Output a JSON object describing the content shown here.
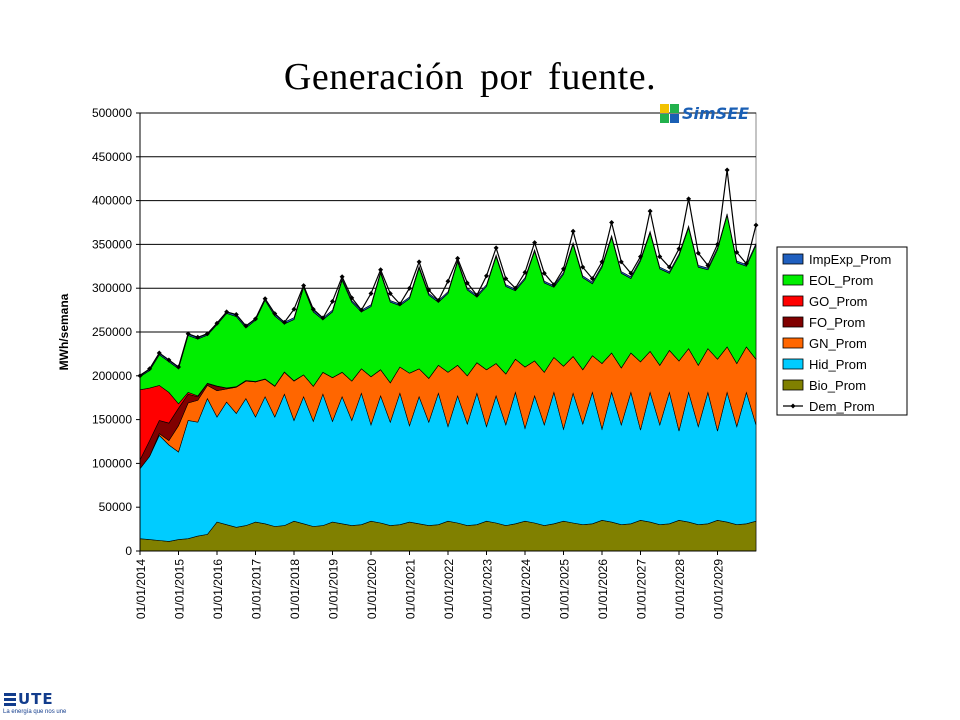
{
  "slide": {
    "title": "Generación por fuente."
  },
  "brand": {
    "name": "SimSEE"
  },
  "company": {
    "name": "UTE",
    "tagline": "La energía que nos une"
  },
  "chart_data": {
    "type": "area",
    "ylabel": "MWh/semana",
    "ylim": [
      0,
      500000
    ],
    "yticks": [
      0,
      50000,
      100000,
      150000,
      200000,
      250000,
      300000,
      350000,
      400000,
      450000,
      500000
    ],
    "ytick_labels": [
      "0",
      "50000",
      "100000",
      "150000",
      "200000",
      "250000",
      "300000",
      "350000",
      "400000",
      "450000",
      "500000"
    ],
    "xlim": [
      2014.0,
      2030.0
    ],
    "xticks": [
      2014,
      2015,
      2016,
      2017,
      2018,
      2019,
      2020,
      2021,
      2022,
      2023,
      2024,
      2025,
      2026,
      2027,
      2028,
      2029
    ],
    "xtick_labels": [
      "01/01/2014",
      "01/01/2015",
      "01/01/2016",
      "01/01/2017",
      "01/01/2018",
      "01/01/2019",
      "01/01/2020",
      "01/01/2021",
      "01/01/2022",
      "01/01/2023",
      "01/01/2024",
      "01/01/2025",
      "01/01/2026",
      "01/01/2027",
      "01/01/2028",
      "01/01/2029"
    ],
    "grid": "horizontal",
    "legend_position": "right",
    "colors": {
      "ImpExp_Prom": "#1f5fbf",
      "EOL_Prom": "#00ee00",
      "GO_Prom": "#ff0000",
      "FO_Prom": "#800000",
      "GN_Prom": "#ff6600",
      "Hid_Prom": "#00ccff",
      "Bio_Prom": "#808000",
      "Dem_Prom": "#000000"
    },
    "legend": [
      "ImpExp_Prom",
      "EOL_Prom",
      "GO_Prom",
      "FO_Prom",
      "GN_Prom",
      "Hid_Prom",
      "Bio_Prom",
      "Dem_Prom"
    ],
    "stack_order": [
      "Bio_Prom",
      "Hid_Prom",
      "GN_Prom",
      "FO_Prom",
      "GO_Prom",
      "EOL_Prom",
      "ImpExp_Prom"
    ],
    "x": [
      2014.0,
      2014.25,
      2014.5,
      2014.75,
      2015.0,
      2015.25,
      2015.5,
      2015.75,
      2016.0,
      2016.25,
      2016.5,
      2016.75,
      2017.0,
      2017.25,
      2017.5,
      2017.75,
      2018.0,
      2018.25,
      2018.5,
      2018.75,
      2019.0,
      2019.25,
      2019.5,
      2019.75,
      2020.0,
      2020.25,
      2020.5,
      2020.75,
      2021.0,
      2021.25,
      2021.5,
      2021.75,
      2022.0,
      2022.25,
      2022.5,
      2022.75,
      2023.0,
      2023.25,
      2023.5,
      2023.75,
      2024.0,
      2024.25,
      2024.5,
      2024.75,
      2025.0,
      2025.25,
      2025.5,
      2025.75,
      2026.0,
      2026.25,
      2026.5,
      2026.75,
      2027.0,
      2027.25,
      2027.5,
      2027.75,
      2028.0,
      2028.25,
      2028.5,
      2028.75,
      2029.0,
      2029.25,
      2029.5,
      2029.75,
      2030.0
    ],
    "series": [
      {
        "name": "Bio_Prom",
        "values": [
          14000,
          13000,
          12000,
          11000,
          13000,
          14000,
          17000,
          19000,
          33000,
          30000,
          27000,
          29000,
          33000,
          31000,
          28000,
          29000,
          34000,
          31000,
          28000,
          29000,
          33000,
          31000,
          29000,
          30000,
          34000,
          32000,
          29000,
          30000,
          33000,
          31000,
          29000,
          30000,
          34000,
          32000,
          29000,
          30000,
          34000,
          32000,
          29000,
          31000,
          34000,
          32000,
          29000,
          31000,
          34000,
          32000,
          30000,
          31000,
          35000,
          33000,
          30000,
          31000,
          35000,
          33000,
          30000,
          31000,
          35000,
          33000,
          30000,
          31000,
          35000,
          33000,
          30000,
          31000,
          34000
        ]
      },
      {
        "name": "Hid_Prom",
        "values": [
          80000,
          95000,
          120000,
          110000,
          100000,
          135000,
          130000,
          155000,
          120000,
          140000,
          130000,
          145000,
          120000,
          145000,
          125000,
          150000,
          115000,
          145000,
          120000,
          150000,
          115000,
          145000,
          120000,
          150000,
          110000,
          145000,
          118000,
          150000,
          110000,
          145000,
          118000,
          150000,
          108000,
          145000,
          116000,
          150000,
          108000,
          145000,
          115000,
          150000,
          106000,
          145000,
          115000,
          150000,
          105000,
          148000,
          115000,
          150000,
          104000,
          148000,
          114000,
          150000,
          103000,
          148000,
          114000,
          150000,
          102000,
          148000,
          112000,
          150000,
          102000,
          148000,
          112000,
          150000,
          110000
        ]
      },
      {
        "name": "GN_Prom",
        "values": [
          0,
          0,
          2000,
          5000,
          30000,
          20000,
          25000,
          15000,
          30000,
          15000,
          30000,
          20000,
          40000,
          20000,
          35000,
          25000,
          45000,
          25000,
          40000,
          25000,
          50000,
          28000,
          45000,
          28000,
          55000,
          30000,
          45000,
          30000,
          60000,
          32000,
          50000,
          32000,
          62000,
          35000,
          55000,
          35000,
          65000,
          37000,
          58000,
          38000,
          70000,
          40000,
          60000,
          40000,
          72000,
          42000,
          62000,
          42000,
          75000,
          45000,
          65000,
          45000,
          78000,
          47000,
          68000,
          48000,
          80000,
          50000,
          70000,
          50000,
          82000,
          52000,
          72000,
          52000,
          75000
        ]
      },
      {
        "name": "FO_Prom",
        "values": [
          10000,
          18000,
          15000,
          20000,
          20000,
          10000,
          4000,
          2000,
          5000,
          1000,
          500,
          500,
          500,
          300,
          300,
          300,
          300,
          0,
          0,
          0,
          0,
          0,
          0,
          0,
          0,
          0,
          0,
          0,
          0,
          0,
          0,
          0,
          0,
          0,
          0,
          0,
          0,
          0,
          0,
          0,
          0,
          0,
          0,
          0,
          0,
          0,
          0,
          0,
          0,
          0,
          0,
          0,
          0,
          0,
          0,
          0,
          0,
          0,
          0,
          0,
          0,
          0,
          0,
          0,
          0
        ]
      },
      {
        "name": "GO_Prom",
        "values": [
          80000,
          60000,
          40000,
          35000,
          5000,
          2000,
          1000,
          500,
          300,
          200,
          100,
          100,
          0,
          0,
          0,
          0,
          0,
          0,
          0,
          0,
          0,
          0,
          0,
          0,
          0,
          0,
          0,
          0,
          0,
          0,
          0,
          0,
          0,
          0,
          0,
          0,
          0,
          0,
          0,
          0,
          0,
          0,
          0,
          0,
          0,
          0,
          0,
          0,
          0,
          0,
          0,
          0,
          0,
          0,
          0,
          0,
          0,
          0,
          0,
          0,
          0,
          0,
          0,
          0,
          0
        ]
      },
      {
        "name": "EOL_Prom",
        "values": [
          15000,
          20000,
          35000,
          35000,
          40000,
          65000,
          65000,
          55000,
          70000,
          85000,
          80000,
          60000,
          70000,
          90000,
          80000,
          55000,
          70000,
          100000,
          85000,
          60000,
          75000,
          105000,
          90000,
          65000,
          80000,
          110000,
          92000,
          70000,
          85000,
          115000,
          95000,
          72000,
          90000,
          118000,
          98000,
          75000,
          95000,
          122000,
          100000,
          78000,
          100000,
          125000,
          102000,
          80000,
          105000,
          128000,
          105000,
          82000,
          110000,
          132000,
          108000,
          85000,
          115000,
          135000,
          110000,
          88000,
          120000,
          138000,
          112000,
          90000,
          125000,
          150000,
          115000,
          92000,
          130000
        ]
      },
      {
        "name": "ImpExp_Prom",
        "values": [
          2000,
          2000,
          2000,
          2000,
          2000,
          2000,
          2000,
          2000,
          2000,
          2000,
          2000,
          2000,
          2000,
          2000,
          2000,
          2000,
          2000,
          2000,
          2000,
          2000,
          2000,
          2000,
          2000,
          2000,
          2000,
          2000,
          2000,
          2000,
          2000,
          2000,
          2000,
          2000,
          2000,
          2000,
          2000,
          2000,
          2000,
          2000,
          2000,
          2000,
          2000,
          2000,
          2000,
          2000,
          2000,
          2000,
          2000,
          2000,
          2000,
          2000,
          2000,
          2000,
          2000,
          2000,
          2000,
          2000,
          2000,
          2000,
          2000,
          2000,
          2000,
          2000,
          2000,
          2000,
          2000
        ]
      },
      {
        "name": "Dem_Prom",
        "values": [
          200000,
          208000,
          226000,
          218000,
          210000,
          248000,
          244000,
          248000,
          260000,
          273000,
          270000,
          257000,
          265000,
          288000,
          271000,
          261000,
          276000,
          303000,
          276000,
          266000,
          285000,
          313000,
          289000,
          275000,
          294000,
          321000,
          294000,
          282000,
          300000,
          330000,
          298000,
          286000,
          308000,
          334000,
          306000,
          292000,
          314000,
          346000,
          311000,
          300000,
          318000,
          352000,
          317000,
          304000,
          322000,
          365000,
          324000,
          311000,
          330000,
          375000,
          330000,
          317000,
          336000,
          388000,
          336000,
          324000,
          345000,
          402000,
          340000,
          326000,
          350000,
          435000,
          341000,
          328000,
          372000
        ]
      }
    ]
  }
}
